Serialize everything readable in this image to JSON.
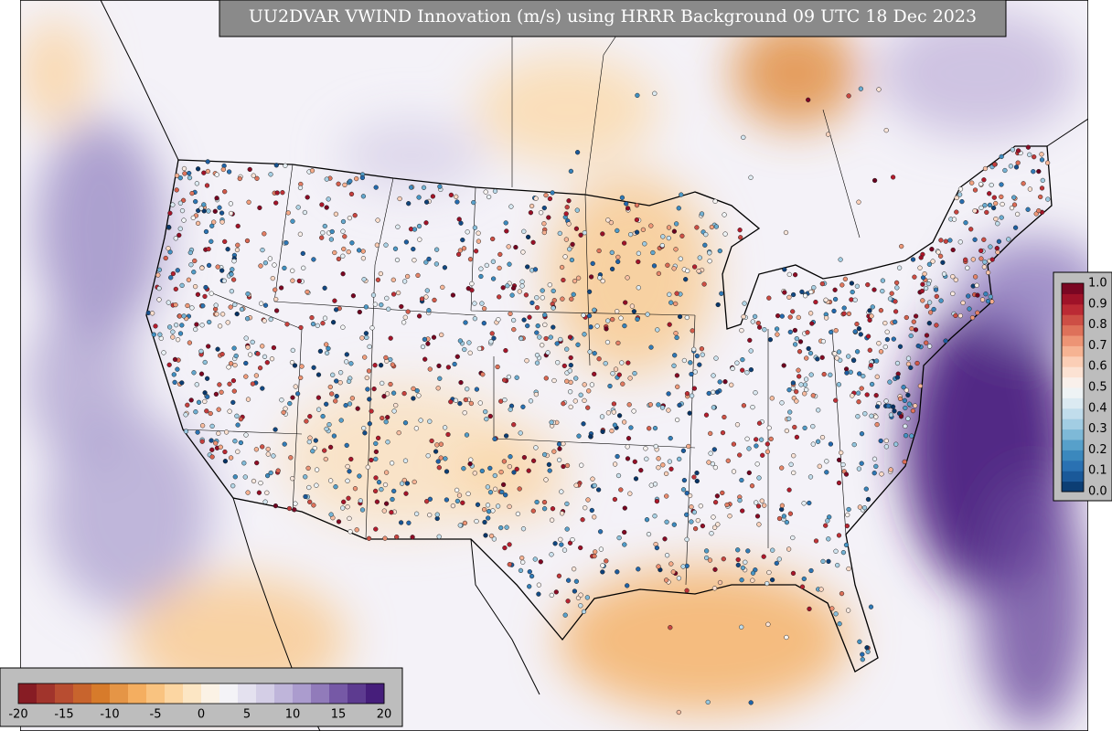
{
  "title": "UU2DVAR VWIND Innovation (m/s) using HRRR Background 09 UTC 18 Dec 2023",
  "innovation_colorbar": {
    "tick_labels": [
      "-20",
      "-15",
      "-10",
      "-5",
      "0",
      "5",
      "10",
      "15",
      "20"
    ]
  },
  "observation_colorbar": {
    "tick_labels": [
      "1.0",
      "0.9",
      "0.8",
      "0.7",
      "0.6",
      "0.5",
      "0.4",
      "0.3",
      "0.2",
      "0.1",
      "0.0"
    ]
  }
}
